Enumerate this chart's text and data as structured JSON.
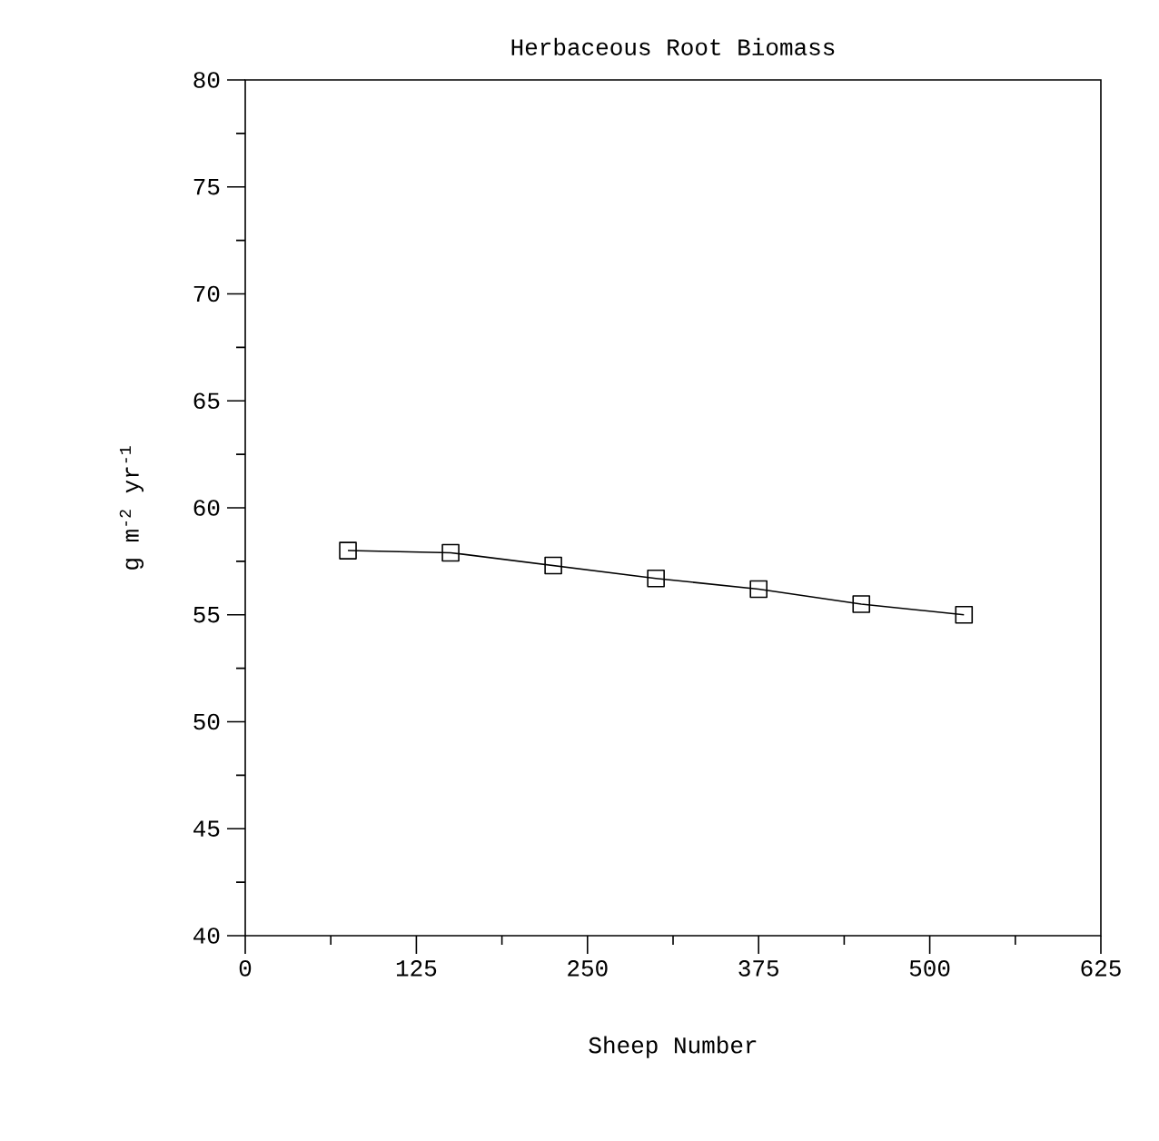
{
  "chart_data": {
    "type": "line",
    "title": "Herbaceous Root Biomass",
    "xlabel": "Sheep Number",
    "ylabel": "g m$^{-2}$ yr$^{-1}$",
    "x": [
      75,
      150,
      225,
      300,
      375,
      450,
      525
    ],
    "series": [
      {
        "color": "#000000",
        "values": [
          58.0,
          57.9,
          57.3,
          56.7,
          56.2,
          55.5,
          55.0
        ]
      }
    ],
    "xlim": [
      0,
      625
    ],
    "xticks": [
      0,
      125,
      250,
      375,
      500,
      625
    ],
    "ylim": [
      40,
      80
    ],
    "yticks": [
      40,
      45,
      50,
      55,
      60,
      65,
      70,
      75,
      80
    ],
    "marker": "square",
    "line_style": "solid",
    "grid": false
  }
}
